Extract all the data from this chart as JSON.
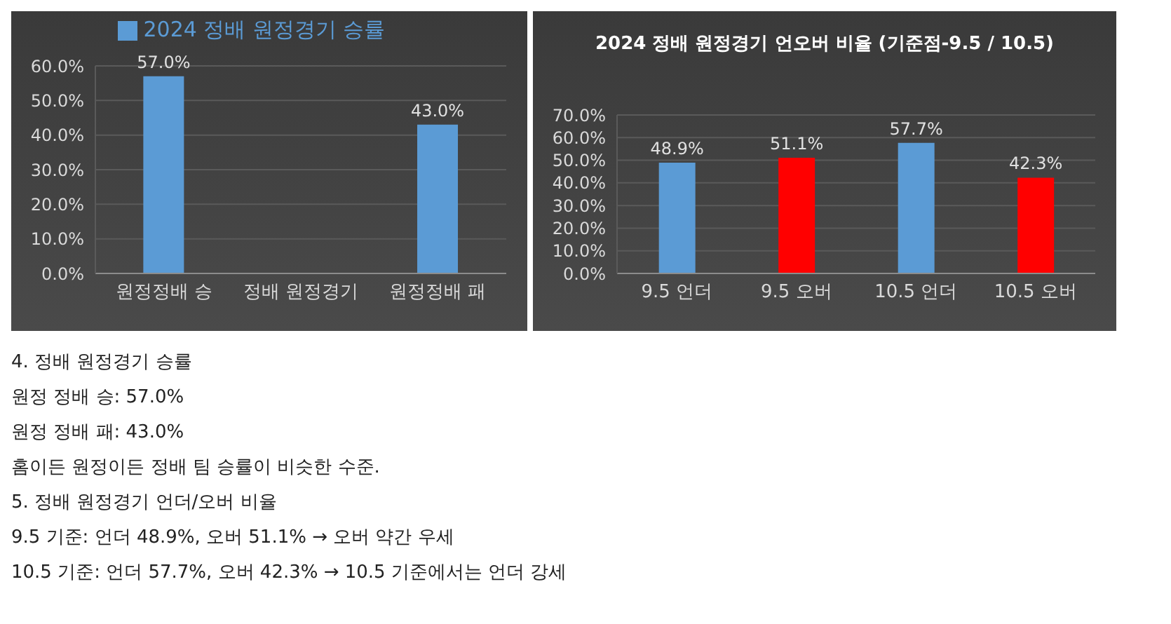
{
  "chart_data": [
    {
      "type": "bar",
      "categories": [
        "원정정배 승",
        "정배 원정경기",
        "원정정배 패"
      ],
      "series": [
        {
          "name": "2024 정배 원정경기 승률",
          "color": "#5b9bd5",
          "values": [
            57.0,
            null,
            43.0
          ],
          "value_labels": [
            "57.0%",
            null,
            "43.0%"
          ]
        }
      ],
      "ylim": [
        0,
        60
      ],
      "yticks": [
        {
          "value": 0,
          "label": "0.0%"
        },
        {
          "value": 10,
          "label": "10.0%"
        },
        {
          "value": 20,
          "label": "20.0%"
        },
        {
          "value": 30,
          "label": "30.0%"
        },
        {
          "value": 40,
          "label": "40.0%"
        },
        {
          "value": 50,
          "label": "50.0%"
        },
        {
          "value": 60,
          "label": "60.0%"
        }
      ],
      "grid": "y",
      "legend": "top"
    },
    {
      "type": "bar",
      "title": "2024 정배 원정경기 언오버 비율 (기준점-9.5 / 10.5)",
      "categories": [
        "9.5 언더",
        "9.5 오버",
        "10.5 언더",
        "10.5 오버"
      ],
      "series": [
        {
          "colors": [
            "#5b9bd5",
            "#ff0000",
            "#5b9bd5",
            "#ff0000"
          ],
          "values": [
            48.9,
            51.1,
            57.7,
            42.3
          ],
          "value_labels": [
            "48.9%",
            "51.1%",
            "57.7%",
            "42.3%"
          ]
        }
      ],
      "ylim": [
        0,
        70
      ],
      "yticks": [
        {
          "value": 0,
          "label": "0.0%"
        },
        {
          "value": 10,
          "label": "10.0%"
        },
        {
          "value": 20,
          "label": "20.0%"
        },
        {
          "value": 30,
          "label": "30.0%"
        },
        {
          "value": 40,
          "label": "40.0%"
        },
        {
          "value": 50,
          "label": "50.0%"
        },
        {
          "value": 60,
          "label": "60.0%"
        },
        {
          "value": 70,
          "label": "70.0%"
        }
      ],
      "grid": "y",
      "legend": false
    },
    {
      "type": "other",
      "annotations": [
        "4. 정배 원정경기 승률",
        "원정 정배 승: 57.0%",
        "원정 정배 패: 43.0%",
        "홈이든 원정이든 정배 팀 승률이 비슷한 수준.",
        "5. 정배 원정경기 언더/오버 비율",
        "9.5 기준: 언더 48.9%, 오버 51.1% → 오버 약간 우세",
        "10.5 기준: 언더 57.7%, 오버 42.3% → 10.5 기준에서는 언더 강세"
      ]
    }
  ]
}
